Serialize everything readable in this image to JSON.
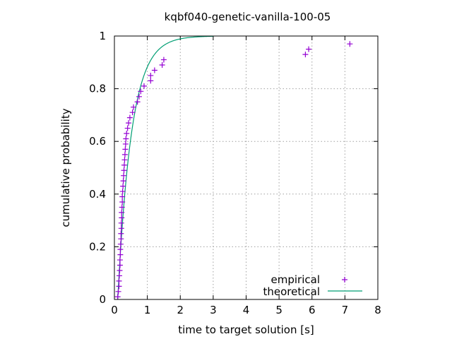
{
  "chart_data": {
    "type": "scatter",
    "title": "kqbf040-genetic-vanilla-100-05",
    "xlabel": "time to target solution [s]",
    "ylabel": "cumulative probability",
    "xlim": [
      0,
      8
    ],
    "ylim": [
      0,
      1
    ],
    "xticks": [
      "0",
      "1",
      "2",
      "3",
      "4",
      "5",
      "6",
      "7",
      "8"
    ],
    "yticks": [
      "0",
      "0.2",
      "0.4",
      "0.6",
      "0.8",
      "1"
    ],
    "grid": true,
    "legend_position": "bottom-right",
    "series": [
      {
        "name": "empirical",
        "kind": "points",
        "marker": "plus",
        "color": "#9400d3",
        "points": [
          [
            0.1,
            0.01
          ],
          [
            0.12,
            0.03
          ],
          [
            0.14,
            0.05
          ],
          [
            0.14,
            0.07
          ],
          [
            0.15,
            0.09
          ],
          [
            0.16,
            0.11
          ],
          [
            0.17,
            0.13
          ],
          [
            0.17,
            0.15
          ],
          [
            0.18,
            0.17
          ],
          [
            0.18,
            0.19
          ],
          [
            0.19,
            0.21
          ],
          [
            0.2,
            0.23
          ],
          [
            0.2,
            0.25
          ],
          [
            0.21,
            0.27
          ],
          [
            0.21,
            0.29
          ],
          [
            0.22,
            0.31
          ],
          [
            0.22,
            0.33
          ],
          [
            0.23,
            0.35
          ],
          [
            0.24,
            0.37
          ],
          [
            0.24,
            0.39
          ],
          [
            0.25,
            0.41
          ],
          [
            0.26,
            0.43
          ],
          [
            0.27,
            0.45
          ],
          [
            0.28,
            0.47
          ],
          [
            0.29,
            0.49
          ],
          [
            0.3,
            0.51
          ],
          [
            0.31,
            0.53
          ],
          [
            0.32,
            0.55
          ],
          [
            0.33,
            0.57
          ],
          [
            0.34,
            0.59
          ],
          [
            0.35,
            0.61
          ],
          [
            0.37,
            0.63
          ],
          [
            0.4,
            0.65
          ],
          [
            0.43,
            0.67
          ],
          [
            0.47,
            0.69
          ],
          [
            0.55,
            0.71
          ],
          [
            0.58,
            0.73
          ],
          [
            0.7,
            0.75
          ],
          [
            0.75,
            0.77
          ],
          [
            0.8,
            0.79
          ],
          [
            0.9,
            0.81
          ],
          [
            1.1,
            0.83
          ],
          [
            1.1,
            0.85
          ],
          [
            1.22,
            0.87
          ],
          [
            1.45,
            0.89
          ],
          [
            1.5,
            0.91
          ],
          [
            5.8,
            0.93
          ],
          [
            5.9,
            0.95
          ],
          [
            7.15,
            0.97
          ]
        ]
      },
      {
        "name": "theoretical",
        "kind": "line",
        "color": "#009e73",
        "function": "1 - exp(-(x - 0.1) / 0.42)",
        "x_range": [
          0.1,
          3.0
        ]
      }
    ]
  }
}
